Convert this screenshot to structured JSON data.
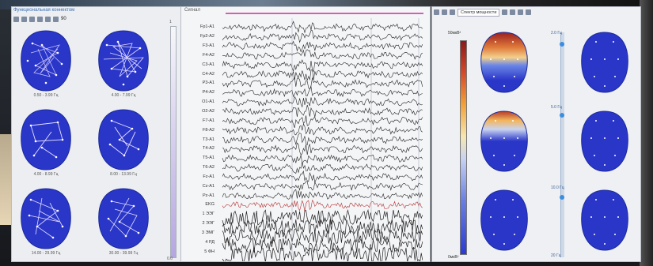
{
  "left_panel": {
    "title": "Функциональная коннектом",
    "toolbar_value": "90",
    "scale_top": "1",
    "scale_bottom": "0.0",
    "maps": [
      {
        "label": "0.50 - 3.99 Гц"
      },
      {
        "label": "4.00 - 7.99 Гц"
      },
      {
        "label": "4.00 - 8.99 Гц"
      },
      {
        "label": "8.00 - 13.99 Гц"
      },
      {
        "label": "14.00 - 29.99 Гц"
      },
      {
        "label": "30.00 - 39.99 Гц"
      }
    ]
  },
  "eeg_panel": {
    "title": "Сигнал",
    "channels": [
      "Fp1-A1",
      "Fp2-A2",
      "F3-A1",
      "F4-A2",
      "C3-A1",
      "C4-A2",
      "P3-A1",
      "P4-A2",
      "O1-A1",
      "O2-A2",
      "F7-A1",
      "F8-A2",
      "T3-A1",
      "T4-A2",
      "T5-A1",
      "T6-A2",
      "Fz-A1",
      "Cz-A1",
      "Pz-A1",
      "EKG",
      "1 ЭЭГ",
      "2 ЭЭГ",
      "3 ЭМГ",
      "4 РД",
      "5 ФН"
    ],
    "highlight_colors": {
      "trace": "#222222",
      "ekg": "#b43232",
      "marker": "#d35fb4"
    }
  },
  "right_panel": {
    "toolbar_select": "Спектр мощности",
    "colorbar_top": "50мкВ²",
    "colorbar_bottom": "0мкВ²",
    "freq_labels": [
      "2.0 Гц",
      "5.0 Гц",
      "10.0 Гц",
      "20 Гц"
    ],
    "colors": {
      "low": "#2a36c8",
      "high": "#9b1f1f",
      "mid": "#f2d08c"
    }
  }
}
